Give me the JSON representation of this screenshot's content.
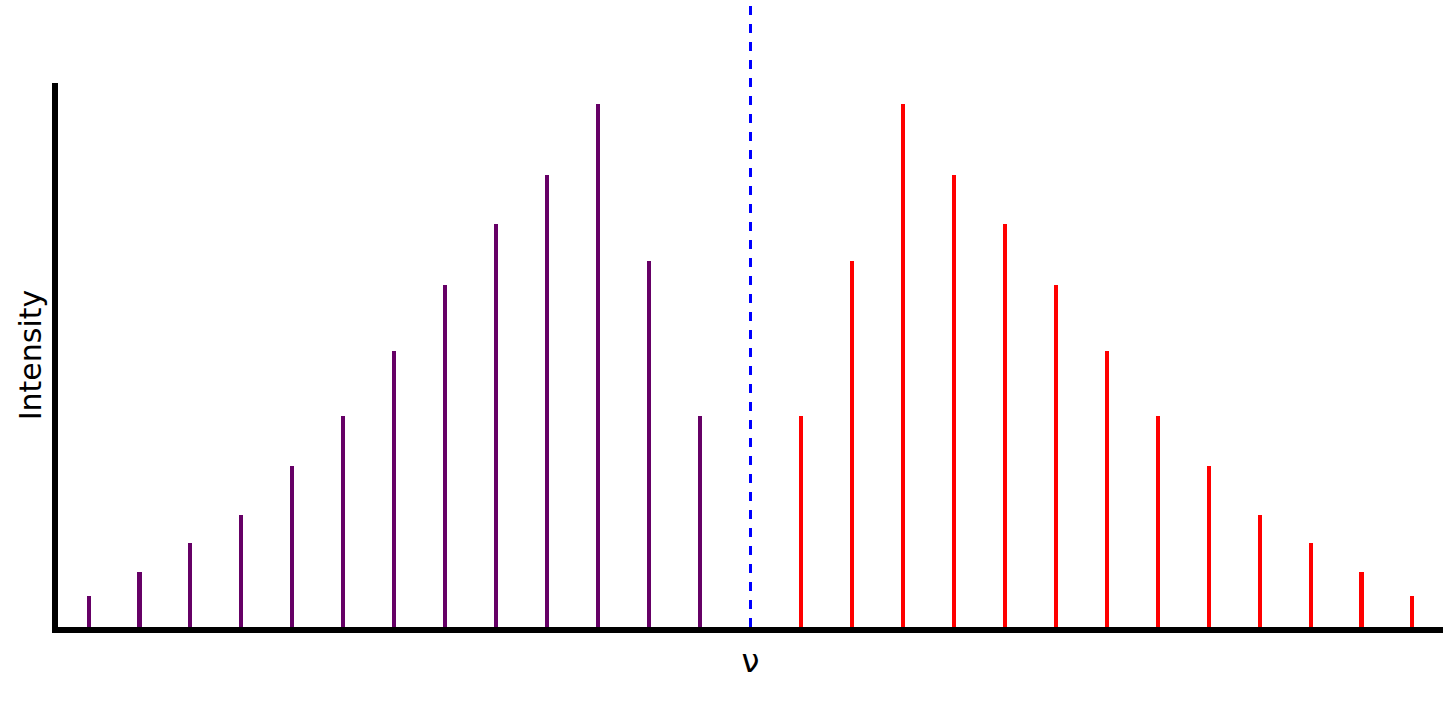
{
  "chart_data": {
    "type": "bar",
    "xlabel": "ν",
    "ylabel": "Intensity",
    "series": [
      {
        "color": "#660066",
        "x": [
          -13,
          -12,
          -11,
          -10,
          -9,
          -8,
          -7,
          -6,
          -5,
          -4,
          -3,
          -2,
          -1
        ],
        "values": [
          5.7,
          10.1,
          15.4,
          20.6,
          29.6,
          38.8,
          50.7,
          62.9,
          74.1,
          83.1,
          96.1,
          67.3,
          38.8
        ]
      },
      {
        "color": "#ff0000",
        "x": [
          1,
          2,
          3,
          4,
          5,
          6,
          7,
          8,
          9,
          10,
          11,
          12,
          13
        ],
        "values": [
          38.8,
          67.3,
          96.1,
          83.1,
          74.1,
          62.9,
          50.7,
          38.8,
          29.6,
          20.6,
          15.4,
          10.1,
          5.7
        ]
      }
    ],
    "center_line": {
      "x": 0,
      "color": "#0000ff",
      "line_style": "dash"
    },
    "xlim": [
      -13.6,
      13.6
    ],
    "ylim": [
      0,
      100
    ],
    "xticks": [],
    "yticks": [],
    "tick_labels": false,
    "grid": false
  }
}
